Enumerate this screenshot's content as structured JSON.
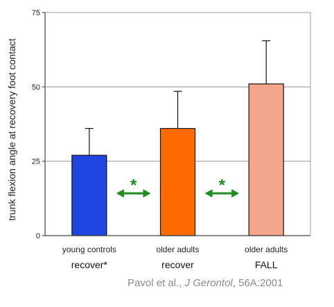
{
  "chart_data": {
    "type": "bar",
    "ylabel": "trunk flexion angle at recovery foot contact",
    "ylim": [
      0,
      75
    ],
    "yticks": [
      0,
      25,
      50,
      75
    ],
    "grid": true,
    "categories": [
      "young controls",
      "older adults",
      "older adults"
    ],
    "sublabels": [
      "recover*",
      "recover",
      "FALL"
    ],
    "values": [
      27,
      36,
      51
    ],
    "errors": [
      9,
      12.5,
      14.5
    ],
    "colors": [
      "#1f45e0",
      "#ff6a00",
      "#f2a58a"
    ],
    "annotations": [
      {
        "between": [
          0,
          1
        ],
        "text": "*",
        "color": "#1e8c1e"
      },
      {
        "between": [
          1,
          2
        ],
        "text": "*",
        "color": "#1e8c1e"
      }
    ]
  },
  "citation": {
    "authors": "Pavol et al., ",
    "journal": "J Gerontol",
    "ref": ", 56A:2001"
  }
}
